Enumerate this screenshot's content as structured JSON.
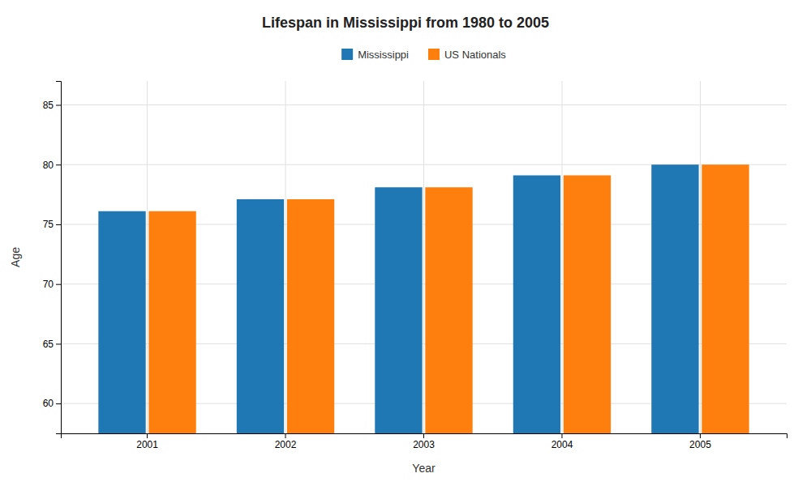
{
  "chart_data": {
    "type": "bar",
    "title": "Lifespan in Mississippi from 1980 to 2005",
    "xlabel": "Year",
    "ylabel": "Age",
    "categories": [
      "2001",
      "2002",
      "2003",
      "2004",
      "2005"
    ],
    "series": [
      {
        "name": "Mississippi",
        "values": [
          76.1,
          77.1,
          78.1,
          79.1,
          80.0
        ]
      },
      {
        "name": "US Nationals",
        "values": [
          76.1,
          77.1,
          78.1,
          79.1,
          80.0
        ]
      }
    ],
    "ylim": [
      57.5,
      87
    ],
    "yticks": [
      60,
      65,
      70,
      75,
      80,
      85
    ],
    "grid": true,
    "legend": "top"
  }
}
